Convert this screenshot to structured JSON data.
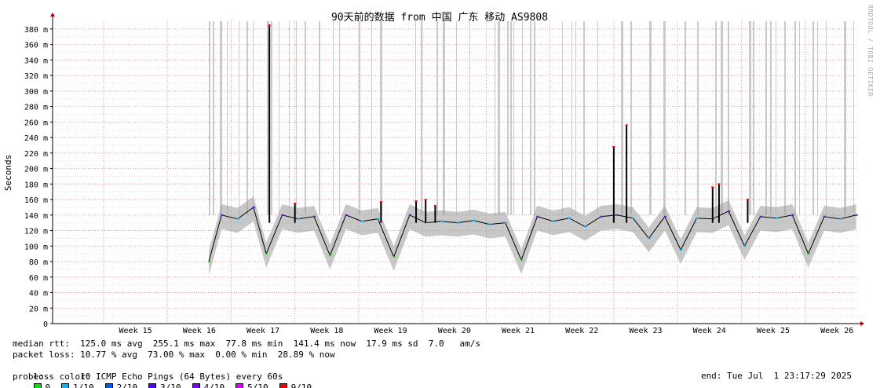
{
  "chart_data": {
    "type": "line",
    "title": "90天前的数据 from 中国 广东 移动 AS9808",
    "ylabel": "Seconds",
    "xlabel": "",
    "ylim": [
      0,
      390
    ],
    "grid": true,
    "y_ticks": [
      0,
      20,
      40,
      60,
      80,
      100,
      120,
      140,
      160,
      180,
      200,
      220,
      240,
      260,
      280,
      300,
      320,
      340,
      360,
      380
    ],
    "y_tick_labels": [
      "0",
      "20 m",
      "40 m",
      "60 m",
      "80 m",
      "100 m",
      "120 m",
      "140 m",
      "160 m",
      "180 m",
      "200 m",
      "220 m",
      "240 m",
      "260 m",
      "280 m",
      "300 m",
      "320 m",
      "340 m",
      "360 m",
      "380 m"
    ],
    "x_labels": [
      "Week 15",
      "Week 16",
      "Week 17",
      "Week 18",
      "Week 19",
      "Week 20",
      "Week 21",
      "Week 22",
      "Week 23",
      "Week 24",
      "Week 25",
      "Week 26"
    ],
    "x_range_weeks": [
      14.2,
      26.83
    ],
    "data_start_week": 16.65,
    "series": [
      {
        "name": "median rtt",
        "x_weeks": [
          16.65,
          16.85,
          17.1,
          17.35,
          17.55,
          17.8,
          18.05,
          18.3,
          18.55,
          18.8,
          19.05,
          19.3,
          19.55,
          19.8,
          20.05,
          20.3,
          20.55,
          20.8,
          21.05,
          21.3,
          21.55,
          21.8,
          22.05,
          22.3,
          22.55,
          22.8,
          23.05,
          23.3,
          23.55,
          23.8,
          24.05,
          24.3,
          24.55,
          24.8,
          25.05,
          25.3,
          25.55,
          25.8,
          26.05,
          26.3,
          26.55,
          26.8
        ],
        "values_ms": [
          80,
          140,
          135,
          150,
          90,
          140,
          135,
          138,
          88,
          140,
          132,
          135,
          86,
          140,
          130,
          132,
          130,
          133,
          128,
          130,
          82,
          138,
          132,
          136,
          125,
          138,
          140,
          136,
          110,
          138,
          95,
          136,
          135,
          145,
          100,
          138,
          136,
          140,
          90,
          138,
          135,
          140
        ]
      }
    ],
    "spikes": [
      {
        "week": 17.6,
        "value_ms": 385
      },
      {
        "week": 18.0,
        "value_ms": 155
      },
      {
        "week": 19.35,
        "value_ms": 157
      },
      {
        "week": 19.9,
        "value_ms": 158
      },
      {
        "week": 20.05,
        "value_ms": 160
      },
      {
        "week": 20.2,
        "value_ms": 152
      },
      {
        "week": 23.0,
        "value_ms": 228
      },
      {
        "week": 23.2,
        "value_ms": 256
      },
      {
        "week": 24.55,
        "value_ms": 176
      },
      {
        "week": 24.65,
        "value_ms": 180
      },
      {
        "week": 25.1,
        "value_ms": 160
      }
    ],
    "loss_color_key": [
      "#00e600",
      "#00b8ff",
      "#0059ff",
      "#5500ff",
      "#7e00ff",
      "#dd00ff",
      "#ff0000"
    ]
  },
  "stats": {
    "median_rtt": "median rtt:  125.0 ms avg  255.1 ms max  77.8 ms min  141.4 ms now  17.9 ms sd  7.0   am/s",
    "packet_loss": "packet loss: 10.77 % avg  73.00 % max  0.00 % min  28.89 % now",
    "loss_color_label": "loss color:",
    "loss_colors": [
      {
        "label": "0",
        "color": "#00e600"
      },
      {
        "label": "1/10",
        "color": "#00b8ff"
      },
      {
        "label": "2/10",
        "color": "#0059ff"
      },
      {
        "label": "3/10",
        "color": "#5500ff"
      },
      {
        "label": "4/10",
        "color": "#7e00ff"
      },
      {
        "label": "5/10",
        "color": "#dd00ff"
      },
      {
        "label": "9/10",
        "color": "#ff0000"
      }
    ],
    "probe": "probe:       10 ICMP Echo Pings (64 Bytes) every 60s",
    "end": "end: Tue Jul  1 23:17:29 2025"
  },
  "watermark": "RRDTOOL / TOBI OETIKER"
}
